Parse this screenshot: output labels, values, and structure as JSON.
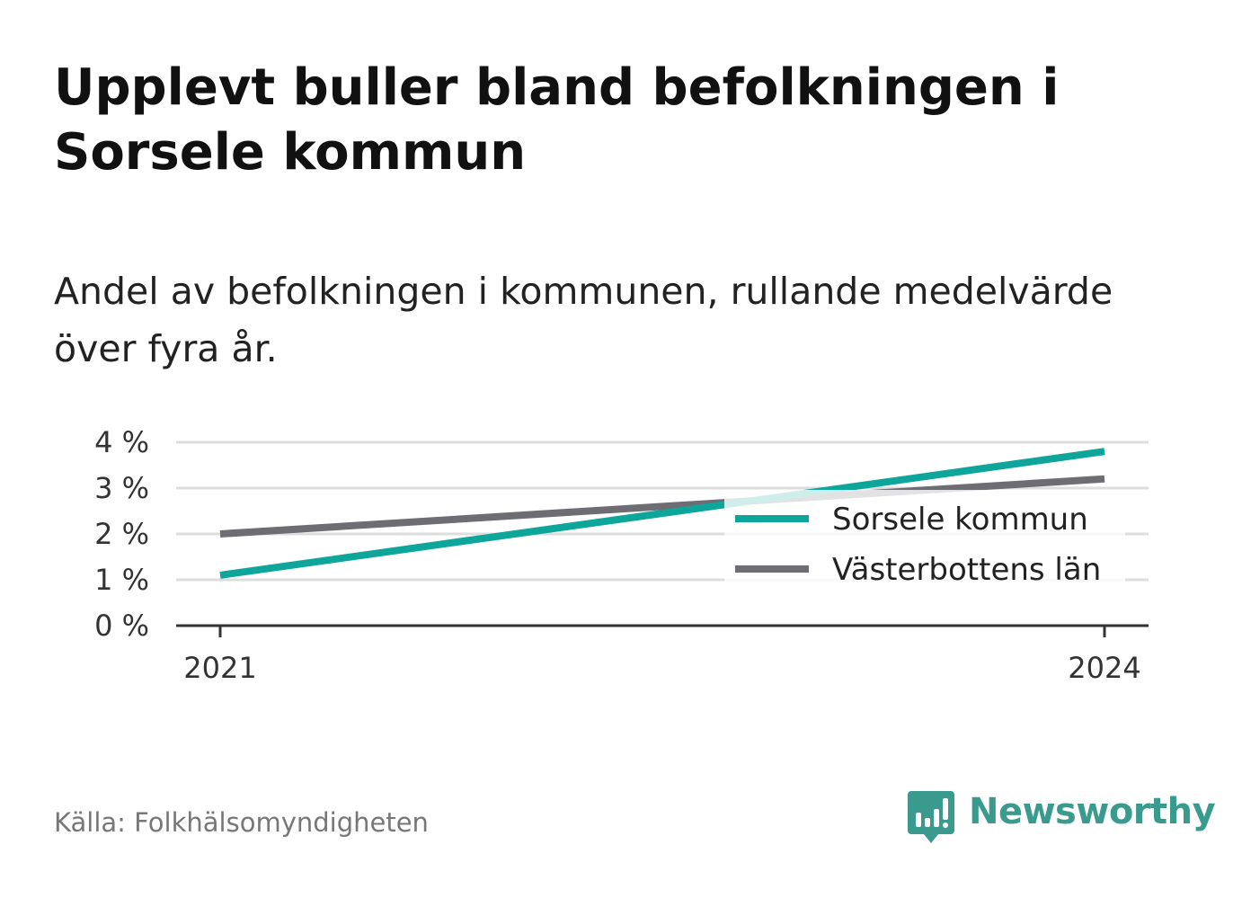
{
  "title": "Upplevt buller bland befolkningen i Sorsele kommun",
  "subtitle": "Andel av befolkningen i kommunen, rullande medelvärde över fyra år.",
  "source": "Källa: Folkhälsomyndigheten",
  "brand": {
    "name": "Newsworthy",
    "icon": "newsworthy-logo-icon",
    "color": "#3a9a8e"
  },
  "chart_data": {
    "type": "line",
    "title": "Upplevt buller bland befolkningen i Sorsele kommun",
    "subtitle": "Andel av befolkningen i kommunen, rullande medelvärde över fyra år.",
    "x": [
      2021,
      2024
    ],
    "xticks": [
      "2021",
      "2024"
    ],
    "yticks": [
      "0 %",
      "1 %",
      "2 %",
      "3 %",
      "4 %"
    ],
    "ylim": [
      0,
      4
    ],
    "grid": true,
    "legend_position": "right",
    "series": [
      {
        "name": "Sorsele kommun",
        "color": "#0ea59a",
        "values": [
          1.1,
          3.8
        ]
      },
      {
        "name": "Västerbottens län",
        "color": "#6e6d73",
        "values": [
          2.0,
          3.2
        ]
      }
    ]
  }
}
